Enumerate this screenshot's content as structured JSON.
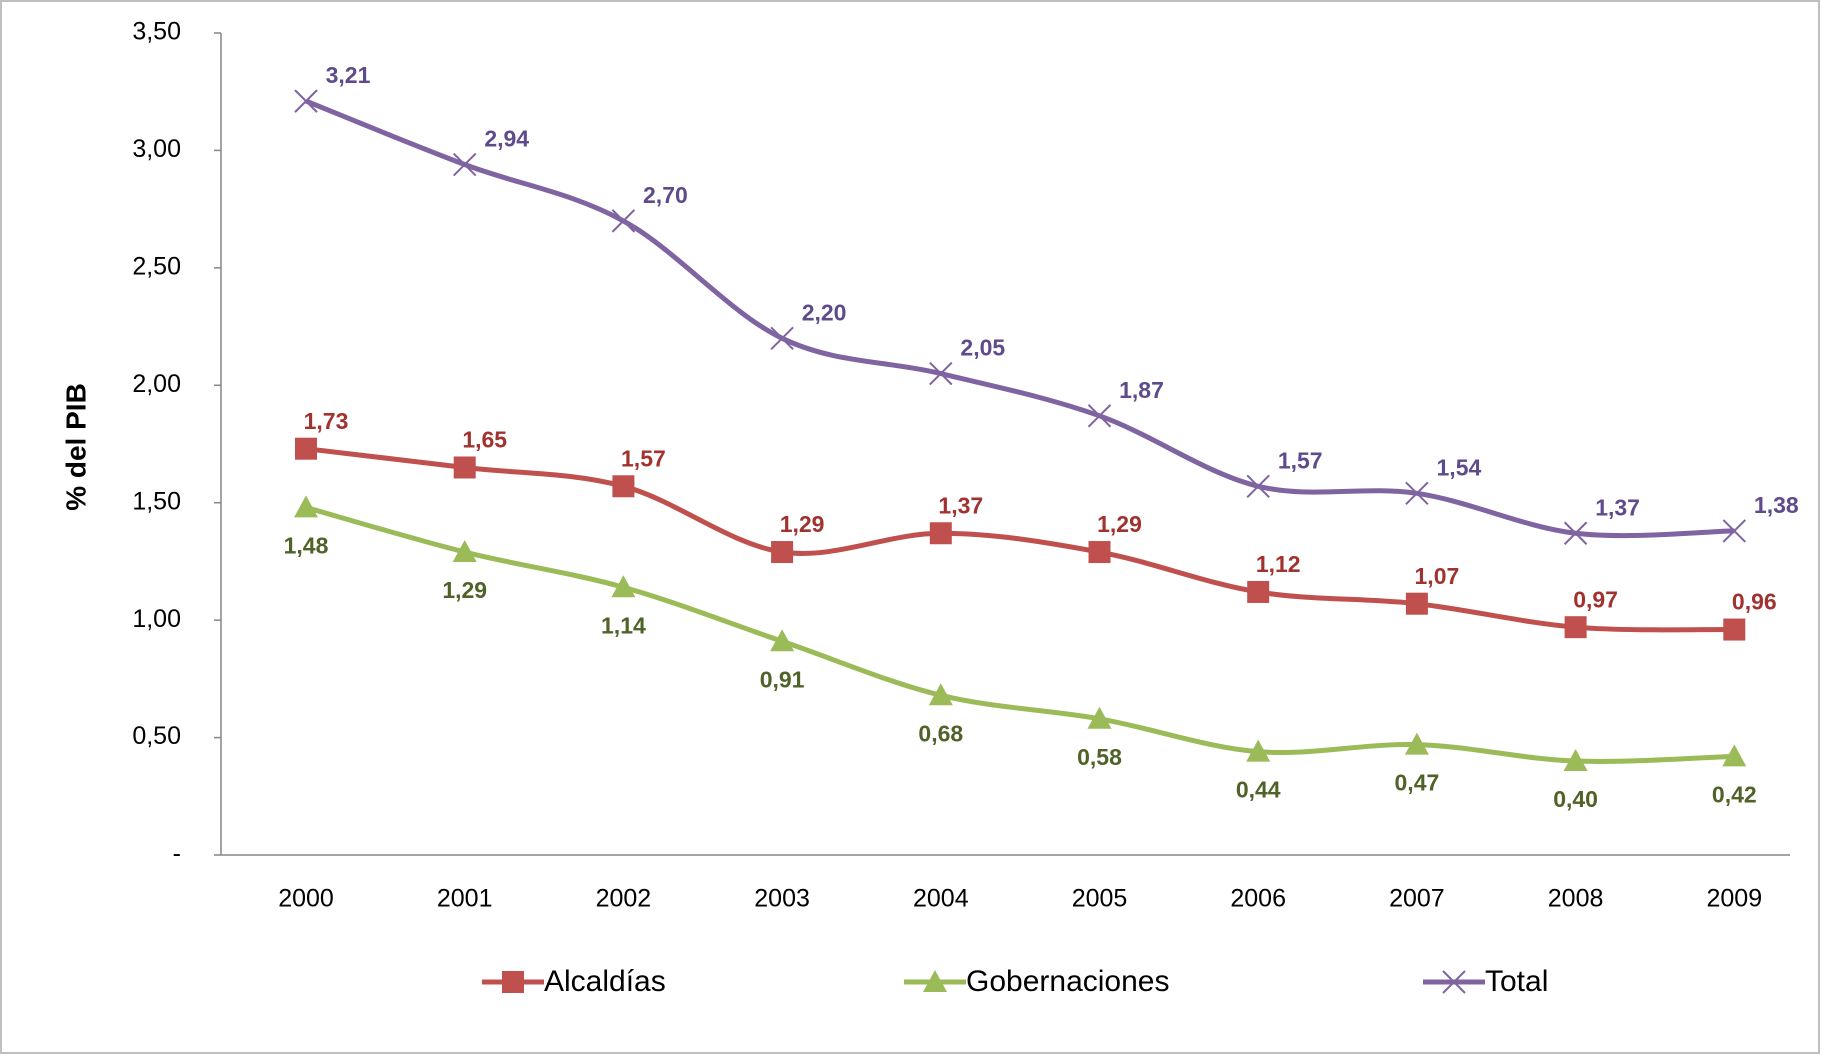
{
  "chart_data": {
    "type": "line",
    "y_label": "% del PIB",
    "categories": [
      "2000",
      "2001",
      "2002",
      "2003",
      "2004",
      "2005",
      "2006",
      "2007",
      "2008",
      "2009"
    ],
    "series": [
      {
        "name": "Alcaldías",
        "color": "#c0504d",
        "label_color": "#a0322f",
        "marker": "square",
        "values": [
          1.73,
          1.65,
          1.57,
          1.29,
          1.37,
          1.29,
          1.12,
          1.07,
          0.97,
          0.96
        ],
        "value_labels": [
          "1,73",
          "1,65",
          "1,57",
          "1,29",
          "1,37",
          "1,29",
          "1,12",
          "1,07",
          "0,97",
          "0,96"
        ]
      },
      {
        "name": "Gobernaciones",
        "color": "#9bbb59",
        "label_color": "#4f6228",
        "marker": "triangle",
        "values": [
          1.48,
          1.29,
          1.14,
          0.91,
          0.68,
          0.58,
          0.44,
          0.47,
          0.4,
          0.42
        ],
        "value_labels": [
          "1,48",
          "1,29",
          "1,14",
          "0,91",
          "0,68",
          "0,58",
          "0,44",
          "0,47",
          "0,40",
          "0,42"
        ]
      },
      {
        "name": "Total",
        "color": "#8064a2",
        "label_color": "#5f4b8b",
        "marker": "x",
        "values": [
          3.21,
          2.94,
          2.7,
          2.2,
          2.05,
          1.87,
          1.57,
          1.54,
          1.37,
          1.38
        ],
        "value_labels": [
          "3,21",
          "2,94",
          "2,70",
          "2,20",
          "2,05",
          "1,87",
          "1,57",
          "1,54",
          "1,37",
          "1,38"
        ]
      }
    ],
    "ylim": [
      0,
      3.5
    ],
    "yticks": [
      {
        "value": 0,
        "label": "-"
      },
      {
        "value": 0.5,
        "label": "0,50"
      },
      {
        "value": 1,
        "label": "1,00"
      },
      {
        "value": 1.5,
        "label": "1,50"
      },
      {
        "value": 2,
        "label": "2,00"
      },
      {
        "value": 2.5,
        "label": "2,50"
      },
      {
        "value": 3,
        "label": "3,00"
      },
      {
        "value": 3.5,
        "label": "3,50"
      }
    ],
    "legend": "bottom"
  }
}
